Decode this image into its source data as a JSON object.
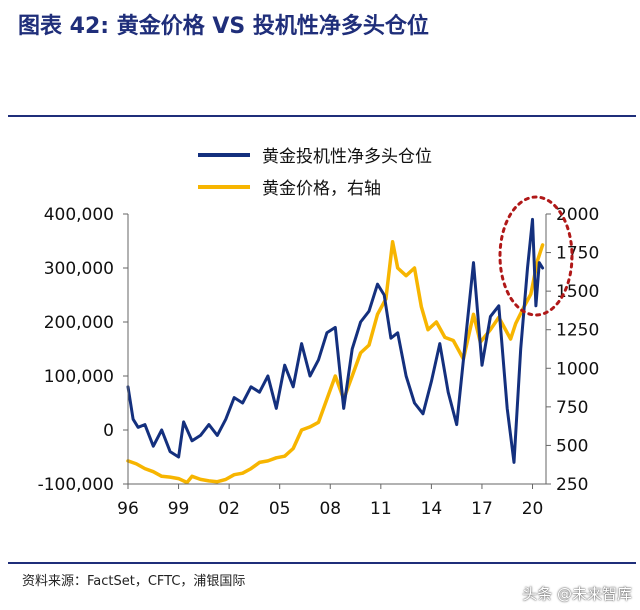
{
  "figure": {
    "title": "图表 42: 黄金价格 VS 投机性净多头仓位",
    "source": "资料来源：FactSet，CFTC，浦银国际",
    "watermark": "头条 @未来智库"
  },
  "colors": {
    "positions": "#14307e",
    "price": "#f7b500",
    "title": "#1f2e7a",
    "highlight": "#b01818"
  },
  "chart_data": {
    "type": "line",
    "title": "",
    "xlabel": "",
    "ylabel_left": "",
    "ylabel_right": "",
    "x_ticks": [
      "96",
      "99",
      "02",
      "05",
      "08",
      "11",
      "14",
      "17",
      "20"
    ],
    "x_tick_values": [
      1996,
      1999,
      2002,
      2005,
      2008,
      2011,
      2014,
      2017,
      2020
    ],
    "xlim": [
      1996,
      2020.8
    ],
    "y_left_ticks": [
      "400,000",
      "300,000",
      "200,000",
      "100,000",
      "0",
      "-100,000"
    ],
    "y_left_tick_values": [
      400000,
      300000,
      200000,
      100000,
      0,
      -100000
    ],
    "ylim_left": [
      -100000,
      400000
    ],
    "y_right_ticks": [
      "2000",
      "1750",
      "1500",
      "1250",
      "1000",
      "750",
      "500",
      "250"
    ],
    "y_right_tick_values": [
      2000,
      1750,
      1500,
      1250,
      1000,
      750,
      500,
      250
    ],
    "ylim_right": [
      250,
      2000
    ],
    "legend_position": "top",
    "grid": false,
    "annotation": "dotted red ellipse around 2019-2020 peak",
    "series": [
      {
        "name": "黄金投机性净多头仓位",
        "axis": "left",
        "color": "#14307e",
        "x": [
          1996.0,
          1996.3,
          1996.6,
          1997.0,
          1997.5,
          1998.0,
          1998.5,
          1999.0,
          1999.3,
          1999.8,
          2000.3,
          2000.8,
          2001.3,
          2001.8,
          2002.3,
          2002.8,
          2003.3,
          2003.8,
          2004.3,
          2004.8,
          2005.3,
          2005.8,
          2006.3,
          2006.8,
          2007.3,
          2007.8,
          2008.3,
          2008.8,
          2009.3,
          2009.8,
          2010.3,
          2010.8,
          2011.2,
          2011.6,
          2012.0,
          2012.5,
          2013.0,
          2013.5,
          2014.0,
          2014.5,
          2015.0,
          2015.5,
          2016.0,
          2016.5,
          2017.0,
          2017.5,
          2018.0,
          2018.5,
          2018.9,
          2019.3,
          2019.7,
          2020.0,
          2020.2,
          2020.4,
          2020.6
        ],
        "y": [
          80000,
          20000,
          5000,
          10000,
          -30000,
          0,
          -40000,
          -50000,
          15000,
          -20000,
          -10000,
          10000,
          -10000,
          20000,
          60000,
          50000,
          80000,
          70000,
          100000,
          40000,
          120000,
          80000,
          160000,
          100000,
          130000,
          180000,
          190000,
          40000,
          150000,
          200000,
          220000,
          270000,
          250000,
          170000,
          180000,
          100000,
          50000,
          30000,
          90000,
          160000,
          70000,
          10000,
          160000,
          310000,
          120000,
          210000,
          230000,
          40000,
          -60000,
          150000,
          300000,
          390000,
          230000,
          310000,
          300000
        ]
      },
      {
        "name": "黄金价格，右轴",
        "axis": "right",
        "color": "#f7b500",
        "x": [
          1996.0,
          1996.5,
          1997.0,
          1997.5,
          1998.0,
          1998.5,
          1999.0,
          1999.5,
          1999.8,
          2000.3,
          2000.8,
          2001.3,
          2001.8,
          2002.3,
          2002.8,
          2003.3,
          2003.8,
          2004.3,
          2004.8,
          2005.3,
          2005.8,
          2006.3,
          2006.8,
          2007.3,
          2007.8,
          2008.3,
          2008.8,
          2009.3,
          2009.8,
          2010.3,
          2010.8,
          2011.3,
          2011.7,
          2012.0,
          2012.5,
          2013.0,
          2013.4,
          2013.8,
          2014.3,
          2014.8,
          2015.3,
          2015.9,
          2016.5,
          2016.9,
          2017.5,
          2018.0,
          2018.7,
          2019.0,
          2019.5,
          2019.9,
          2020.3,
          2020.6
        ],
        "y": [
          400,
          380,
          350,
          330,
          300,
          295,
          285,
          260,
          300,
          280,
          270,
          265,
          280,
          310,
          320,
          350,
          390,
          400,
          420,
          430,
          480,
          600,
          620,
          650,
          800,
          950,
          800,
          950,
          1100,
          1150,
          1350,
          1450,
          1820,
          1650,
          1600,
          1650,
          1400,
          1250,
          1300,
          1200,
          1180,
          1060,
          1350,
          1170,
          1250,
          1330,
          1190,
          1290,
          1400,
          1480,
          1700,
          1800
        ]
      }
    ]
  }
}
